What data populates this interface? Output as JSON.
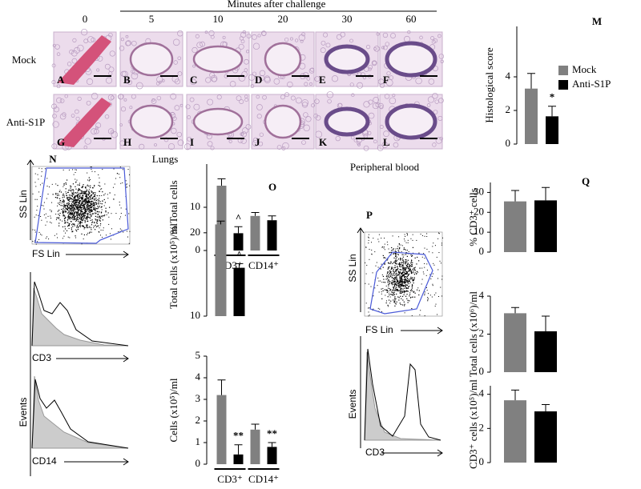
{
  "header": {
    "title": "Minutes after challenge",
    "times": [
      "0",
      "5",
      "10",
      "20",
      "30",
      "60"
    ]
  },
  "rows": [
    "Mock",
    "Anti-S1P"
  ],
  "panels": [
    "A",
    "B",
    "C",
    "D",
    "E",
    "F",
    "G",
    "H",
    "I",
    "J",
    "K",
    "L"
  ],
  "sections": {
    "lungs": "Lungs",
    "blood": "Peripheral blood"
  },
  "flow": {
    "N": {
      "label": "N",
      "ss": "SS Lin",
      "fs": "FS Lin",
      "hist1": "CD3",
      "hist2": "CD14",
      "events": "Events"
    },
    "P": {
      "label": "P",
      "ss": "SS Lin",
      "fs": "FS Lin",
      "hist1": "CD3",
      "events": "Events"
    }
  },
  "chart_data": [
    {
      "type": "bar",
      "label": "M",
      "y_label": "Histological score",
      "categories": [
        null
      ],
      "legend": "right",
      "series": [
        {
          "name": "Mock",
          "color": "#808080",
          "values": [
            3.3
          ],
          "errors": [
            0.9
          ]
        },
        {
          "name": "Anti-S1P",
          "color": "#000000",
          "values": [
            1.65
          ],
          "errors": [
            0.6
          ]
        }
      ],
      "ylim": [
        0,
        7
      ],
      "yticks": [
        0,
        2,
        4
      ],
      "annotations": [
        "*"
      ]
    },
    {
      "type": "bar",
      "label": "O",
      "y_label": "% Total cells",
      "categories": [
        "CD3⁺",
        "CD14⁺"
      ],
      "series": [
        {
          "color": "#808080",
          "values": [
            15,
            8
          ],
          "errors": [
            1.6,
            0.8
          ]
        },
        {
          "color": "#000000",
          "values": [
            4,
            7
          ],
          "errors": [
            1.5,
            1.0
          ]
        }
      ],
      "ylim": [
        0,
        20
      ],
      "yticks": [
        0,
        10
      ],
      "annotations": [
        "^"
      ]
    },
    {
      "type": "bar",
      "y_label": "Total cells (x10⁵)/ml",
      "categories": [
        null
      ],
      "series": [
        {
          "color": "#808080",
          "values": [
            21
          ],
          "errors": [
            0.4
          ]
        },
        {
          "color": "#000000",
          "values": [
            15.8
          ],
          "errors": [
            0.5
          ]
        }
      ],
      "ylim": [
        10,
        22
      ],
      "yticks": [
        10,
        20
      ],
      "annotations": [
        "^"
      ]
    },
    {
      "type": "bar",
      "y_label": "Cells (x10⁵)/ml",
      "categories": [
        "CD3⁺",
        "CD14⁺"
      ],
      "series": [
        {
          "color": "#808080",
          "values": [
            3.2,
            1.6
          ],
          "errors": [
            0.7,
            0.25
          ]
        },
        {
          "color": "#000000",
          "values": [
            0.45,
            0.8
          ],
          "errors": [
            0.45,
            0.2
          ]
        }
      ],
      "ylim": [
        0,
        5
      ],
      "yticks": [
        0,
        1,
        2,
        3,
        4,
        5
      ],
      "annotations": [
        "**",
        "**"
      ]
    },
    {
      "type": "bar",
      "label": "Q",
      "y_label": "% CD3⁺ cells",
      "categories": [
        null
      ],
      "series": [
        {
          "color": "#808080",
          "values": [
            25.5
          ],
          "errors": [
            5.5
          ]
        },
        {
          "color": "#000000",
          "values": [
            26
          ],
          "errors": [
            6.5
          ]
        }
      ],
      "ylim": [
        0,
        35
      ],
      "yticks": [
        0,
        10,
        20,
        30
      ]
    },
    {
      "type": "bar",
      "y_label": "Total cells (x10⁶)/ml",
      "categories": [
        null
      ],
      "series": [
        {
          "color": "#808080",
          "values": [
            3.1
          ],
          "errors": [
            0.3
          ]
        },
        {
          "color": "#000000",
          "values": [
            2.15
          ],
          "errors": [
            0.8
          ]
        }
      ],
      "ylim": [
        0,
        4
      ],
      "yticks": [
        0,
        2,
        4
      ]
    },
    {
      "type": "bar",
      "y_label": "CD3⁺ cells (x10⁵)/ml",
      "categories": [
        null
      ],
      "series": [
        {
          "color": "#808080",
          "values": [
            3.65
          ],
          "errors": [
            0.6
          ]
        },
        {
          "color": "#000000",
          "values": [
            3.0
          ],
          "errors": [
            0.4
          ]
        }
      ],
      "ylim": [
        0,
        4.5
      ],
      "yticks": [
        0,
        2,
        4
      ]
    }
  ]
}
